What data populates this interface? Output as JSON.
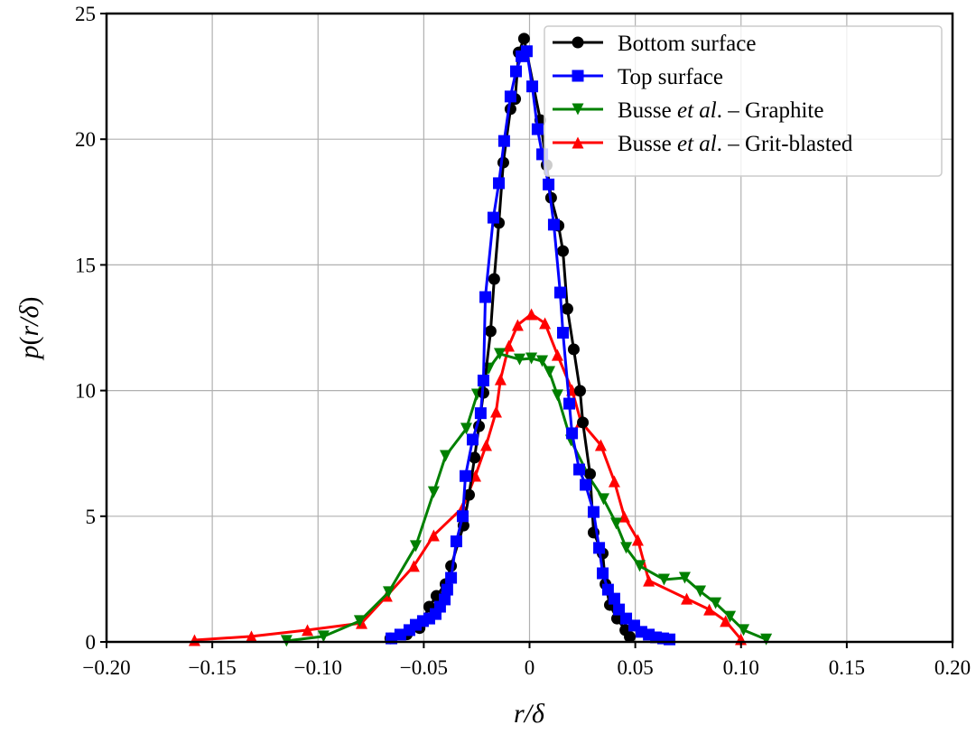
{
  "chart_data": {
    "type": "line",
    "title": "",
    "xlabel": "r/δ",
    "ylabel_parts": {
      "p": "p",
      "open": "(",
      "r": "r/δ",
      "close": ")"
    },
    "xlim": [
      -0.2,
      0.2
    ],
    "ylim": [
      0,
      25
    ],
    "grid": true,
    "legend_placement": "top-right",
    "xticks": [
      -0.2,
      -0.15,
      -0.1,
      -0.05,
      0,
      0.05,
      0.1,
      0.15,
      0.2
    ],
    "xtick_labels": [
      "−0.20",
      "−0.15",
      "−0.10",
      "−0.05",
      "0",
      "0.05",
      "0.10",
      "0.15",
      "0.20"
    ],
    "yticks": [
      0,
      5,
      10,
      15,
      20,
      25
    ],
    "ytick_labels": [
      "0",
      "5",
      "10",
      "15",
      "20",
      "25"
    ],
    "series": [
      {
        "name": "Bottom surface",
        "legend": {
          "pre": "Bottom surface",
          "ital": "",
          "post": ""
        },
        "color": "#000000",
        "marker": "circle",
        "x": [
          -0.0658,
          -0.058,
          -0.052,
          -0.0508,
          -0.0474,
          -0.044,
          -0.0397,
          -0.0371,
          -0.0312,
          -0.0286,
          -0.026,
          -0.0239,
          -0.0218,
          -0.0184,
          -0.0167,
          -0.0145,
          -0.0124,
          -0.009,
          -0.0068,
          -0.0051,
          -0.0026,
          0.0051,
          0.0081,
          0.0102,
          0.0137,
          0.0158,
          0.0179,
          0.0209,
          0.0239,
          0.0252,
          0.0286,
          0.0303,
          0.0346,
          0.0359,
          0.038,
          0.0414,
          0.0453,
          0.0474
        ],
        "y": [
          0.14,
          0.3,
          0.55,
          0.8,
          1.4,
          1.83,
          2.3,
          3.02,
          4.63,
          5.85,
          7.33,
          8.58,
          9.91,
          12.36,
          14.44,
          16.67,
          19.07,
          21.2,
          21.6,
          23.45,
          24.0,
          20.76,
          18.97,
          17.67,
          16.56,
          15.55,
          13.25,
          11.64,
          9.99,
          8.73,
          6.68,
          4.35,
          3.52,
          2.3,
          1.47,
          0.93,
          0.47,
          0.2
        ]
      },
      {
        "name": "Top surface",
        "legend": {
          "pre": "Top surface",
          "ital": "",
          "post": ""
        },
        "color": "#0000ff",
        "marker": "square",
        "x": [
          -0.0653,
          -0.0611,
          -0.0568,
          -0.0538,
          -0.0504,
          -0.0474,
          -0.0444,
          -0.0423,
          -0.0401,
          -0.0389,
          -0.0371,
          -0.0346,
          -0.0316,
          -0.0303,
          -0.0269,
          -0.0231,
          -0.0218,
          -0.0209,
          -0.0171,
          -0.0145,
          -0.012,
          -0.009,
          -0.0064,
          -0.0038,
          -0.0013,
          0.0013,
          0.0038,
          0.006,
          0.009,
          0.0115,
          0.0145,
          0.0158,
          0.0188,
          0.0201,
          0.0235,
          0.0265,
          0.0303,
          0.0329,
          0.0346,
          0.0371,
          0.0401,
          0.0423,
          0.0457,
          0.0495,
          0.0529,
          0.0564,
          0.0598,
          0.0632,
          0.0662
        ],
        "y": [
          0.14,
          0.29,
          0.47,
          0.68,
          0.83,
          0.93,
          1.11,
          1.4,
          1.69,
          2.08,
          2.55,
          4.0,
          5.0,
          6.6,
          8.05,
          9.1,
          10.4,
          13.72,
          16.88,
          18.25,
          19.93,
          21.7,
          22.7,
          23.3,
          23.5,
          22.1,
          20.4,
          19.4,
          18.2,
          16.6,
          13.9,
          12.3,
          9.48,
          8.3,
          6.86,
          6.25,
          5.17,
          3.74,
          2.73,
          2.08,
          1.72,
          1.29,
          0.93,
          0.65,
          0.4,
          0.29,
          0.18,
          0.14,
          0.1
        ]
      },
      {
        "name": "Busse et al. – Graphite",
        "legend": {
          "pre": "Busse ",
          "ital": "et al",
          "post": ". – Graphite"
        },
        "color": "#008000",
        "marker": "triangle-down",
        "x": [
          -0.1149,
          -0.0974,
          -0.0803,
          -0.0666,
          -0.0538,
          -0.0453,
          -0.0397,
          -0.0299,
          -0.0248,
          -0.0192,
          -0.0141,
          -0.0047,
          0.0009,
          0.006,
          0.0094,
          0.0132,
          0.0196,
          0.0286,
          0.035,
          0.041,
          0.0457,
          0.0521,
          0.0636,
          0.0734,
          0.0807,
          0.088,
          0.0948,
          0.1012,
          0.1119
        ],
        "y": [
          0.04,
          0.22,
          0.83,
          1.98,
          3.81,
          5.96,
          7.4,
          8.48,
          9.84,
          10.88,
          11.46,
          11.24,
          11.28,
          11.17,
          10.74,
          9.81,
          8.01,
          6.5,
          5.68,
          4.71,
          3.74,
          3.02,
          2.48,
          2.55,
          2.01,
          1.54,
          1.0,
          0.47,
          0.1
        ]
      },
      {
        "name": "Busse et al. – Grit-blasted",
        "legend": {
          "pre": "Busse ",
          "ital": "et al",
          "post": ". – Grit-blasted"
        },
        "color": "#ff0000",
        "marker": "triangle-up",
        "x": [
          -0.1584,
          -0.1315,
          -0.105,
          -0.0794,
          -0.0675,
          -0.0547,
          -0.0453,
          -0.0316,
          -0.0256,
          -0.0205,
          -0.0158,
          -0.0137,
          -0.0098,
          -0.0056,
          0.0009,
          0.0073,
          0.0132,
          0.0201,
          0.0243,
          0.0337,
          0.0401,
          0.0448,
          0.0512,
          0.0564,
          0.0743,
          0.085,
          0.0927,
          0.0999
        ],
        "y": [
          0.07,
          0.22,
          0.47,
          0.75,
          1.83,
          3.02,
          4.24,
          5.35,
          6.61,
          7.83,
          9.16,
          10.45,
          11.78,
          12.61,
          13.04,
          12.68,
          11.42,
          10.02,
          8.76,
          7.83,
          6.39,
          4.99,
          4.06,
          2.44,
          1.72,
          1.29,
          0.83,
          0.11
        ]
      }
    ]
  }
}
